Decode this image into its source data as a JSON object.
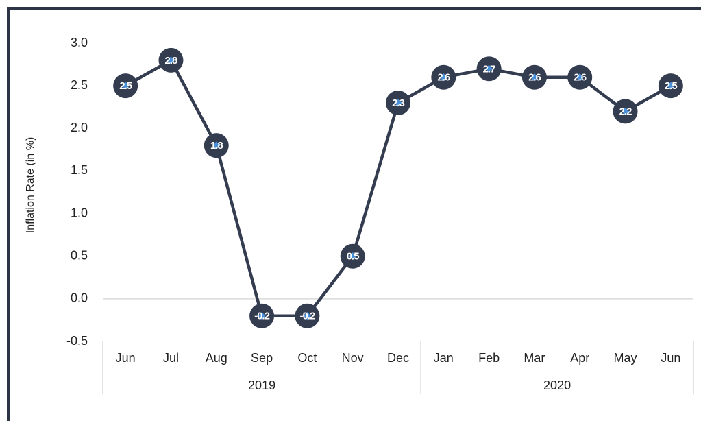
{
  "chart_data": {
    "type": "line",
    "y_label": "Inflation Rate (in %)",
    "category_groups": [
      {
        "label": "2019",
        "categories": [
          "Jun",
          "Jul",
          "Aug",
          "Sep",
          "Oct",
          "Nov",
          "Dec"
        ]
      },
      {
        "label": "2020",
        "categories": [
          "Jan",
          "Feb",
          "Mar",
          "Apr",
          "May",
          "Jun"
        ]
      }
    ],
    "values": [
      2.5,
      2.8,
      1.8,
      -0.2,
      -0.2,
      0.5,
      2.3,
      2.6,
      2.7,
      2.6,
      2.6,
      2.2,
      2.5
    ],
    "color": "#343c50",
    "marker_color": "#4a90d9",
    "ylim": [
      -0.5,
      3.0
    ],
    "yticks": [
      {
        "value": -0.5,
        "label": "-0.5"
      },
      {
        "value": 0,
        "label": "0.0"
      },
      0.5,
      {
        "value": 1,
        "label": "1.0"
      },
      1.5,
      {
        "value": 2,
        "label": "2.0"
      },
      2.5,
      {
        "value": 3,
        "label": "3.0"
      }
    ],
    "grid": false
  }
}
